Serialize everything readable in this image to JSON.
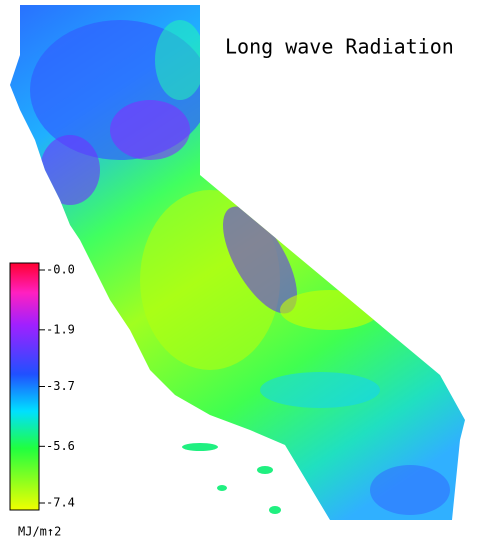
{
  "title": "Long wave Radiation",
  "colorbar": {
    "lim": [
      -7.4,
      0
    ],
    "ticks": [
      {
        "value": 0,
        "label": "-0.0"
      },
      -1.9,
      -3.7,
      -5.6,
      -7.4
    ],
    "unit": "MJ/m↑2"
  }
}
